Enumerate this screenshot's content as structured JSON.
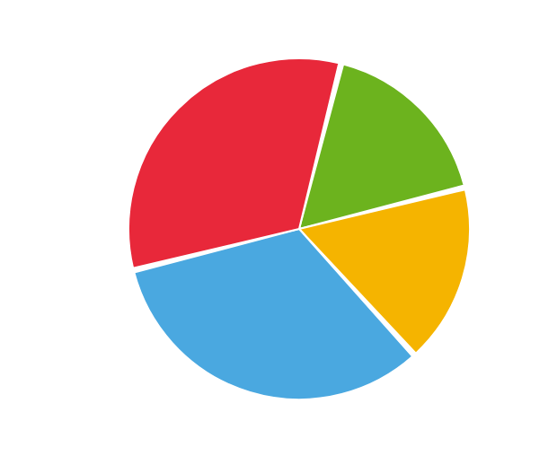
{
  "chart_data": {
    "type": "pie",
    "values": [
      17,
      17,
      33,
      33
    ],
    "colors": [
      "#6cb31e",
      "#f5b400",
      "#4aa8e0",
      "#e8283a"
    ]
  }
}
